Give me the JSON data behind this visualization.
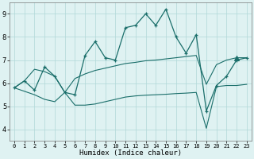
{
  "xlabel": "Humidex (Indice chaleur)",
  "bg_color": "#dff2f2",
  "grid_color": "#b0d8d8",
  "line_color": "#1a6e6a",
  "xlim": [
    -0.5,
    23.5
  ],
  "ylim": [
    3.5,
    9.5
  ],
  "xticks": [
    0,
    1,
    2,
    3,
    4,
    5,
    6,
    7,
    8,
    9,
    10,
    11,
    12,
    13,
    14,
    15,
    16,
    17,
    18,
    19,
    20,
    21,
    22,
    23
  ],
  "yticks": [
    4,
    5,
    6,
    7,
    8,
    9
  ],
  "main_line_x": [
    0,
    1,
    2,
    3,
    4,
    5,
    6,
    7,
    8,
    9,
    10,
    11,
    12,
    13,
    14,
    15,
    16,
    17,
    18,
    19,
    20,
    21,
    22,
    23
  ],
  "main_line_y": [
    5.8,
    6.1,
    5.7,
    6.7,
    6.3,
    5.6,
    5.5,
    7.2,
    7.8,
    7.1,
    7.0,
    8.4,
    8.5,
    9.0,
    8.5,
    9.2,
    8.0,
    7.3,
    8.1,
    4.8,
    5.9,
    6.3,
    7.0,
    7.1
  ],
  "upper_line_x": [
    0,
    1,
    2,
    3,
    4,
    5,
    6,
    7,
    8,
    9,
    10,
    11,
    12,
    13,
    14,
    15,
    16,
    17,
    18,
    19,
    20,
    21,
    22,
    23
  ],
  "upper_line_y": [
    5.8,
    6.1,
    6.6,
    6.5,
    6.3,
    5.6,
    6.2,
    6.4,
    6.55,
    6.65,
    6.75,
    6.85,
    6.9,
    6.97,
    7.0,
    7.05,
    7.1,
    7.15,
    7.2,
    5.95,
    6.8,
    7.0,
    7.1,
    7.1
  ],
  "lower_line_x": [
    0,
    1,
    2,
    3,
    4,
    5,
    6,
    7,
    8,
    9,
    10,
    11,
    12,
    13,
    14,
    15,
    16,
    17,
    18,
    19,
    20,
    21,
    22,
    23
  ],
  "lower_line_y": [
    5.8,
    5.65,
    5.5,
    5.3,
    5.2,
    5.6,
    5.05,
    5.05,
    5.1,
    5.2,
    5.3,
    5.4,
    5.45,
    5.48,
    5.5,
    5.52,
    5.55,
    5.57,
    5.6,
    4.05,
    5.85,
    5.9,
    5.9,
    5.95
  ],
  "triangle_x": 22,
  "triangle_y": 7.1
}
